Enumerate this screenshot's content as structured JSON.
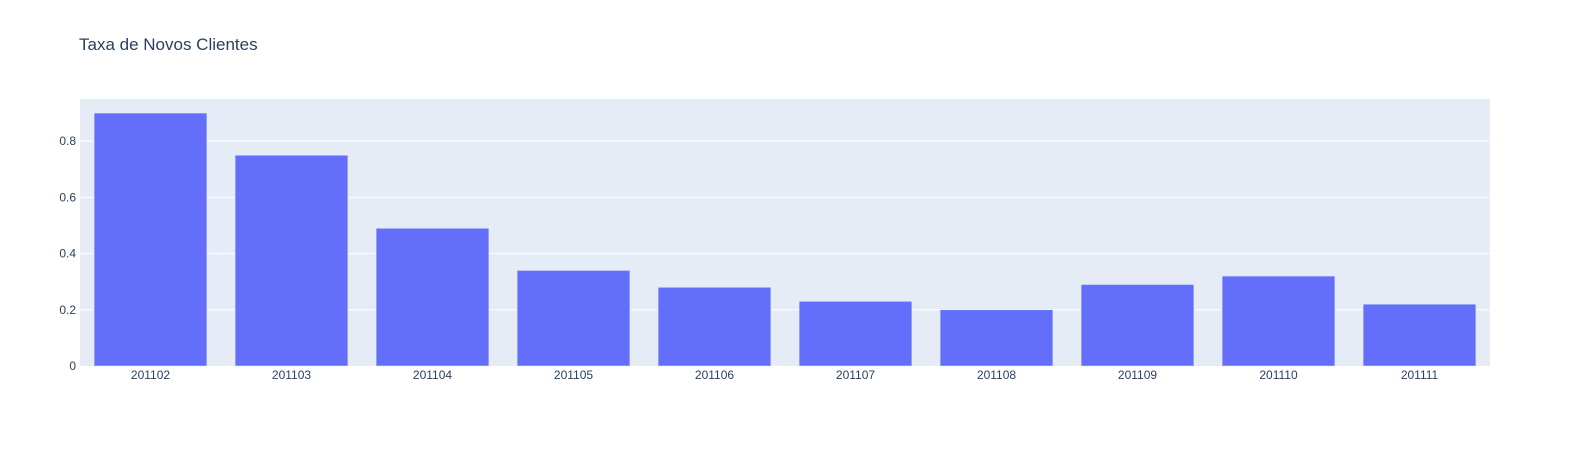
{
  "colors": {
    "background": "#ffffff",
    "plot_background": "#e5ecf6",
    "gridline": "#ffffff",
    "bar": "#636efa",
    "text": "#2a3f5f"
  },
  "chart_data": {
    "type": "bar",
    "title": "Taxa de Novos Clientes",
    "xlabel": "",
    "ylabel": "",
    "categories": [
      "201102",
      "201103",
      "201104",
      "201105",
      "201106",
      "201107",
      "201108",
      "201109",
      "201110",
      "201111"
    ],
    "values": [
      0.9,
      0.75,
      0.49,
      0.34,
      0.28,
      0.23,
      0.2,
      0.29,
      0.32,
      0.22
    ],
    "ylim": [
      0,
      0.95
    ],
    "yticks": [
      0,
      0.2,
      0.4,
      0.6,
      0.8
    ],
    "ytick_labels": [
      "0",
      "0.2",
      "0.4",
      "0.6",
      "0.8"
    ],
    "grid": true,
    "legend": "none"
  }
}
